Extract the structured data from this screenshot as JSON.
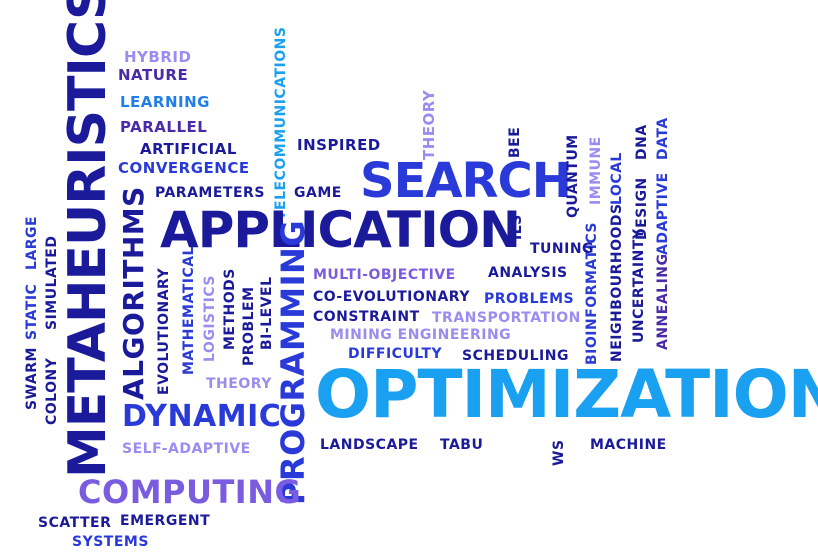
{
  "palette": {
    "dark_navy": "#1a1a9a",
    "royal_blue": "#2a3ad8",
    "bright_blue": "#1f7fe6",
    "sky_blue": "#1aa0f0",
    "lavender": "#9a8cf0",
    "violet": "#7a5ce0",
    "purple": "#4a2aa8"
  },
  "words": {
    "metaheuristics": "METAHEURISTICS",
    "hybrid": "HYBRID",
    "nature": "NATURE",
    "learning": "LEARNING",
    "parallel": "PARALLEL",
    "artificial": "ARTIFICIAL",
    "convergence": "CONVERGENCE",
    "parameters": "PARAMETERS",
    "game": "GAME",
    "telecommunications": "TELECOMMUNICATIONS",
    "inspired": "INSPIRED",
    "theory_top": "THEORY",
    "bee": "BEE",
    "search": "SEARCH",
    "quantum": "QUANTUM",
    "immune": "IMMUNE",
    "local": "LOCAL",
    "dna": "DNA",
    "data": "DATA",
    "adaptive": "ADAPTIVE",
    "design": "DESIGN",
    "annealing": "ANNEALING",
    "uncertainty": "UNCERTAINTY",
    "neighbourhoods": "NEIGHBOURHOODS",
    "bioinformatics": "BIOINFORMATICS",
    "application": "APPLICATION",
    "ils": "ILS",
    "tuning": "TUNING",
    "algorithms": "ALGORITHMS",
    "large": "LARGE",
    "static": "STATIC",
    "simulated": "SIMULATED",
    "swarm": "SWARM",
    "colony": "COLONY",
    "evolutionary": "EVOLUTIONARY",
    "mathematical": "MATHEMATICAL",
    "logistics": "LOGISTICS",
    "methods": "METHODS",
    "problem": "PROBLEM",
    "bi_level": "BI-LEVEL",
    "programming": "PROGRAMMING",
    "multi_objective": "MULTI-OBJECTIVE",
    "analysis": "ANALYSIS",
    "co_evolutionary": "CO-EVOLUTIONARY",
    "problems": "PROBLEMS",
    "constraint": "CONSTRAINT",
    "transportation": "TRANSPORTATION",
    "mining_engineering": "MINING ENGINEERING",
    "difficulty": "DIFFICULTY",
    "scheduling": "SCHEDULING",
    "theory_bottom": "THEORY",
    "dynamic": "DYNAMIC",
    "optimization": "OPTIMIZATION",
    "self_adaptive": "SELF-ADAPTIVE",
    "landscape": "LANDSCAPE",
    "tabu": "TABU",
    "ws": "WS",
    "machine": "MACHINE",
    "computing": "COMPUTING",
    "scatter": "SCATTER",
    "emergent": "EMERGENT",
    "systems": "SYSTEMS"
  }
}
